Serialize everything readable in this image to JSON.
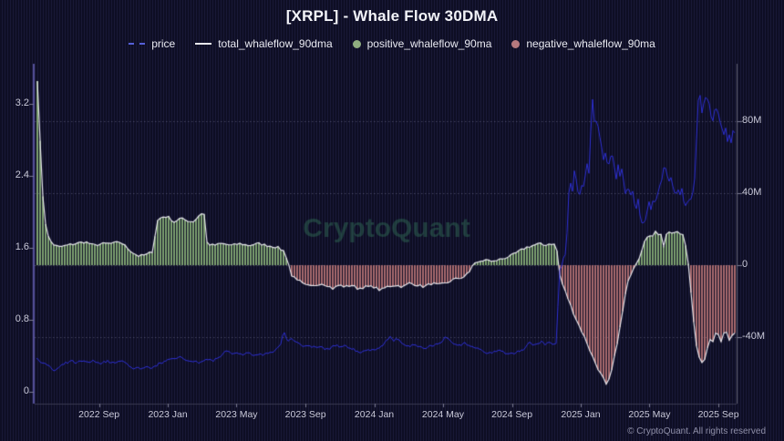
{
  "title": "[XRPL] - Whale Flow 30DMA",
  "watermark": "CryptoQuant",
  "footer": {
    "copyright": "© CryptoQuant. All rights reserved"
  },
  "colors": {
    "background": "#0e0e24",
    "pinstripe": "#181836",
    "price_line": "#2d2fd2",
    "total_line": "#e4e4ea",
    "positive_bar": "#7da070",
    "negative_bar": "#a96a6e",
    "grid": "#9696b4",
    "axis_left": "#55509a",
    "axis_right": "#606070",
    "axis_bottom": "#3a3a50",
    "watermark": "rgba(58,134,98,0.38)"
  },
  "legend": [
    {
      "label": "price",
      "swatch": "dash",
      "color": "#5560d8"
    },
    {
      "label": "total_whaleflow_90dma",
      "swatch": "line",
      "color": "#e8e8ec"
    },
    {
      "label": "positive_whaleflow_90ma",
      "swatch": "circle",
      "color": "#8fae7f"
    },
    {
      "label": "negative_whaleflow_90ma",
      "swatch": "circle",
      "color": "#b5797e"
    }
  ],
  "chart_data": {
    "type": "mixed",
    "title": "[XRPL] - Whale Flow 30DMA",
    "x_range": [
      2022.355,
      2025.755
    ],
    "price_axis": {
      "side": "left",
      "ticks": [
        {
          "label": "0",
          "v": 0
        },
        {
          "label": "0.8",
          "v": 0.8
        },
        {
          "label": "1.6",
          "v": 1.6
        },
        {
          "label": "2.4",
          "v": 2.4
        },
        {
          "label": "3.2",
          "v": 3.2
        }
      ],
      "range": [
        -0.132,
        3.646
      ]
    },
    "flow_axis": {
      "side": "right",
      "ticks": [
        {
          "label": "-40M",
          "v": -40
        },
        {
          "label": "0",
          "v": 0
        },
        {
          "label": "40M",
          "v": 40
        },
        {
          "label": "80M",
          "v": 80
        }
      ],
      "range": [
        -76.9,
        111.9
      ]
    },
    "x_ticks": [
      {
        "label": "2022 Sep",
        "t": 2022.667
      },
      {
        "label": "2023 Jan",
        "t": 2023.0
      },
      {
        "label": "2023 May",
        "t": 2023.333
      },
      {
        "label": "2023 Sep",
        "t": 2023.667
      },
      {
        "label": "2024 Jan",
        "t": 2024.0
      },
      {
        "label": "2024 May",
        "t": 2024.333
      },
      {
        "label": "2024 Sep",
        "t": 2024.667
      },
      {
        "label": "2025 Jan",
        "t": 2025.0
      },
      {
        "label": "2025 May",
        "t": 2025.333
      },
      {
        "label": "2025 Sep",
        "t": 2025.667
      }
    ],
    "series": [
      {
        "name": "price",
        "type": "line",
        "axis": "price"
      },
      {
        "name": "total_whaleflow_90dma",
        "type": "line",
        "axis": "flow"
      },
      {
        "name": "positive_whaleflow_90ma",
        "type": "bar",
        "axis": "flow",
        "sign": "positive"
      },
      {
        "name": "negative_whaleflow_90ma",
        "type": "bar",
        "axis": "flow",
        "sign": "negative"
      }
    ],
    "noise": {
      "seed": 7,
      "price_amp_early": 0.018,
      "price_amp_late": 0.06,
      "flow_amp": 0.7,
      "late_after": 2024.88
    },
    "whaleflow_points": [
      [
        2022.37,
        103
      ],
      [
        2022.385,
        58
      ],
      [
        2022.4,
        28
      ],
      [
        2022.42,
        16
      ],
      [
        2022.44,
        12
      ],
      [
        2022.47,
        10
      ],
      [
        2022.51,
        11
      ],
      [
        2022.55,
        12
      ],
      [
        2022.6,
        13
      ],
      [
        2022.64,
        11
      ],
      [
        2022.69,
        12
      ],
      [
        2022.73,
        12
      ],
      [
        2022.77,
        13
      ],
      [
        2022.8,
        10
      ],
      [
        2022.83,
        7
      ],
      [
        2022.86,
        5
      ],
      [
        2022.9,
        6
      ],
      [
        2022.93,
        8
      ],
      [
        2022.945,
        24
      ],
      [
        2022.96,
        26
      ],
      [
        2022.98,
        27
      ],
      [
        2023.0,
        27
      ],
      [
        2023.03,
        24
      ],
      [
        2023.06,
        26
      ],
      [
        2023.09,
        25
      ],
      [
        2023.12,
        24
      ],
      [
        2023.14,
        26
      ],
      [
        2023.16,
        29
      ],
      [
        2023.18,
        28
      ],
      [
        2023.19,
        12
      ],
      [
        2023.22,
        11
      ],
      [
        2023.26,
        12
      ],
      [
        2023.31,
        11
      ],
      [
        2023.35,
        12
      ],
      [
        2023.39,
        11
      ],
      [
        2023.44,
        12
      ],
      [
        2023.48,
        11
      ],
      [
        2023.53,
        10
      ],
      [
        2023.56,
        8
      ],
      [
        2023.58,
        3
      ],
      [
        2023.6,
        -6
      ],
      [
        2023.62,
        -7
      ],
      [
        2023.66,
        -11
      ],
      [
        2023.7,
        -12
      ],
      [
        2023.74,
        -10
      ],
      [
        2023.77,
        -11
      ],
      [
        2023.8,
        -13
      ],
      [
        2023.83,
        -11
      ],
      [
        2023.86,
        -12
      ],
      [
        2023.89,
        -11
      ],
      [
        2023.92,
        -13
      ],
      [
        2023.96,
        -12
      ],
      [
        2024.0,
        -12
      ],
      [
        2024.03,
        -14
      ],
      [
        2024.06,
        -12
      ],
      [
        2024.1,
        -11
      ],
      [
        2024.14,
        -12
      ],
      [
        2024.17,
        -10
      ],
      [
        2024.21,
        -11
      ],
      [
        2024.24,
        -12
      ],
      [
        2024.28,
        -10
      ],
      [
        2024.31,
        -11
      ],
      [
        2024.35,
        -10
      ],
      [
        2024.38,
        -8
      ],
      [
        2024.42,
        -7
      ],
      [
        2024.44,
        -6
      ],
      [
        2024.46,
        -4
      ],
      [
        2024.48,
        1
      ],
      [
        2024.51,
        2
      ],
      [
        2024.54,
        3
      ],
      [
        2024.57,
        2
      ],
      [
        2024.6,
        3
      ],
      [
        2024.63,
        4
      ],
      [
        2024.66,
        5
      ],
      [
        2024.69,
        7
      ],
      [
        2024.72,
        9
      ],
      [
        2024.74,
        10
      ],
      [
        2024.77,
        11
      ],
      [
        2024.8,
        12
      ],
      [
        2024.82,
        11
      ],
      [
        2024.85,
        12
      ],
      [
        2024.87,
        12
      ],
      [
        2024.885,
        8
      ],
      [
        2024.895,
        -4
      ],
      [
        2024.91,
        -10
      ],
      [
        2024.93,
        -16
      ],
      [
        2024.95,
        -22
      ],
      [
        2024.97,
        -28
      ],
      [
        2024.99,
        -33
      ],
      [
        2025.01,
        -38
      ],
      [
        2025.03,
        -43
      ],
      [
        2025.05,
        -49
      ],
      [
        2025.07,
        -54
      ],
      [
        2025.09,
        -59
      ],
      [
        2025.11,
        -63
      ],
      [
        2025.125,
        -67
      ],
      [
        2025.14,
        -63
      ],
      [
        2025.155,
        -56
      ],
      [
        2025.17,
        -47
      ],
      [
        2025.185,
        -38
      ],
      [
        2025.2,
        -28
      ],
      [
        2025.215,
        -17
      ],
      [
        2025.23,
        -9
      ],
      [
        2025.245,
        -4
      ],
      [
        2025.26,
        -1
      ],
      [
        2025.275,
        2
      ],
      [
        2025.29,
        6
      ],
      [
        2025.305,
        13
      ],
      [
        2025.32,
        16
      ],
      [
        2025.335,
        17
      ],
      [
        2025.35,
        16
      ],
      [
        2025.36,
        18
      ],
      [
        2025.37,
        19
      ],
      [
        2025.38,
        16
      ],
      [
        2025.39,
        18
      ],
      [
        2025.4,
        10
      ],
      [
        2025.41,
        16
      ],
      [
        2025.42,
        18
      ],
      [
        2025.43,
        19
      ],
      [
        2025.44,
        18
      ],
      [
        2025.45,
        17
      ],
      [
        2025.46,
        18
      ],
      [
        2025.47,
        19
      ],
      [
        2025.48,
        17
      ],
      [
        2025.49,
        18
      ],
      [
        2025.5,
        15
      ],
      [
        2025.51,
        10
      ],
      [
        2025.52,
        2
      ],
      [
        2025.53,
        -10
      ],
      [
        2025.54,
        -22
      ],
      [
        2025.55,
        -34
      ],
      [
        2025.56,
        -44
      ],
      [
        2025.57,
        -50
      ],
      [
        2025.58,
        -54
      ],
      [
        2025.59,
        -55
      ],
      [
        2025.6,
        -52
      ],
      [
        2025.61,
        -48
      ],
      [
        2025.62,
        -44
      ],
      [
        2025.63,
        -40
      ],
      [
        2025.64,
        -42
      ],
      [
        2025.65,
        -38
      ],
      [
        2025.66,
        -36
      ],
      [
        2025.67,
        -40
      ],
      [
        2025.68,
        -42
      ],
      [
        2025.69,
        -38
      ],
      [
        2025.7,
        -35
      ],
      [
        2025.71,
        -38
      ],
      [
        2025.72,
        -42
      ],
      [
        2025.73,
        -40
      ],
      [
        2025.74,
        -37
      ],
      [
        2025.75,
        -38
      ]
    ],
    "price_points": [
      [
        2022.37,
        0.37
      ],
      [
        2022.39,
        0.33
      ],
      [
        2022.41,
        0.3
      ],
      [
        2022.43,
        0.27
      ],
      [
        2022.45,
        0.23
      ],
      [
        2022.47,
        0.26
      ],
      [
        2022.5,
        0.31
      ],
      [
        2022.53,
        0.34
      ],
      [
        2022.56,
        0.32
      ],
      [
        2022.58,
        0.34
      ],
      [
        2022.61,
        0.33
      ],
      [
        2022.64,
        0.34
      ],
      [
        2022.66,
        0.32
      ],
      [
        2022.69,
        0.33
      ],
      [
        2022.71,
        0.34
      ],
      [
        2022.74,
        0.32
      ],
      [
        2022.76,
        0.33
      ],
      [
        2022.79,
        0.34
      ],
      [
        2022.81,
        0.3
      ],
      [
        2022.83,
        0.25
      ],
      [
        2022.85,
        0.27
      ],
      [
        2022.87,
        0.25
      ],
      [
        2022.9,
        0.27
      ],
      [
        2022.92,
        0.26
      ],
      [
        2022.94,
        0.29
      ],
      [
        2022.96,
        0.31
      ],
      [
        2022.99,
        0.35
      ],
      [
        2023.01,
        0.38
      ],
      [
        2023.03,
        0.36
      ],
      [
        2023.06,
        0.38
      ],
      [
        2023.08,
        0.36
      ],
      [
        2023.1,
        0.34
      ],
      [
        2023.13,
        0.35
      ],
      [
        2023.15,
        0.33
      ],
      [
        2023.17,
        0.34
      ],
      [
        2023.19,
        0.36
      ],
      [
        2023.22,
        0.35
      ],
      [
        2023.24,
        0.37
      ],
      [
        2023.26,
        0.4
      ],
      [
        2023.28,
        0.45
      ],
      [
        2023.31,
        0.42
      ],
      [
        2023.33,
        0.43
      ],
      [
        2023.35,
        0.41
      ],
      [
        2023.37,
        0.43
      ],
      [
        2023.4,
        0.42
      ],
      [
        2023.42,
        0.4
      ],
      [
        2023.44,
        0.42
      ],
      [
        2023.46,
        0.41
      ],
      [
        2023.49,
        0.43
      ],
      [
        2023.51,
        0.45
      ],
      [
        2023.53,
        0.48
      ],
      [
        2023.55,
        0.55
      ],
      [
        2023.56,
        0.7
      ],
      [
        2023.57,
        0.62
      ],
      [
        2023.58,
        0.56
      ],
      [
        2023.6,
        0.6
      ],
      [
        2023.62,
        0.56
      ],
      [
        2023.64,
        0.52
      ],
      [
        2023.66,
        0.5
      ],
      [
        2023.69,
        0.51
      ],
      [
        2023.71,
        0.49
      ],
      [
        2023.73,
        0.5
      ],
      [
        2023.76,
        0.48
      ],
      [
        2023.78,
        0.47
      ],
      [
        2023.8,
        0.5
      ],
      [
        2023.82,
        0.52
      ],
      [
        2023.84,
        0.49
      ],
      [
        2023.86,
        0.51
      ],
      [
        2023.89,
        0.48
      ],
      [
        2023.91,
        0.46
      ],
      [
        2023.93,
        0.44
      ],
      [
        2023.96,
        0.46
      ],
      [
        2023.98,
        0.45
      ],
      [
        2024.0,
        0.47
      ],
      [
        2024.02,
        0.49
      ],
      [
        2024.04,
        0.52
      ],
      [
        2024.06,
        0.57
      ],
      [
        2024.08,
        0.61
      ],
      [
        2024.09,
        0.57
      ],
      [
        2024.11,
        0.59
      ],
      [
        2024.13,
        0.55
      ],
      [
        2024.15,
        0.52
      ],
      [
        2024.17,
        0.5
      ],
      [
        2024.2,
        0.52
      ],
      [
        2024.22,
        0.5
      ],
      [
        2024.24,
        0.48
      ],
      [
        2024.26,
        0.5
      ],
      [
        2024.29,
        0.52
      ],
      [
        2024.31,
        0.54
      ],
      [
        2024.33,
        0.56
      ],
      [
        2024.34,
        0.6
      ],
      [
        2024.36,
        0.58
      ],
      [
        2024.38,
        0.55
      ],
      [
        2024.4,
        0.53
      ],
      [
        2024.42,
        0.52
      ],
      [
        2024.44,
        0.54
      ],
      [
        2024.47,
        0.5
      ],
      [
        2024.49,
        0.48
      ],
      [
        2024.51,
        0.47
      ],
      [
        2024.53,
        0.44
      ],
      [
        2024.55,
        0.42
      ],
      [
        2024.57,
        0.44
      ],
      [
        2024.6,
        0.46
      ],
      [
        2024.62,
        0.44
      ],
      [
        2024.64,
        0.42
      ],
      [
        2024.66,
        0.44
      ],
      [
        2024.68,
        0.43
      ],
      [
        2024.7,
        0.45
      ],
      [
        2024.72,
        0.47
      ],
      [
        2024.74,
        0.52
      ],
      [
        2024.75,
        0.55
      ],
      [
        2024.77,
        0.52
      ],
      [
        2024.79,
        0.54
      ],
      [
        2024.81,
        0.56
      ],
      [
        2024.83,
        0.53
      ],
      [
        2024.85,
        0.55
      ],
      [
        2024.87,
        0.53
      ],
      [
        2024.88,
        0.56
      ],
      [
        2024.886,
        0.75
      ],
      [
        2024.892,
        1.12
      ],
      [
        2024.9,
        1.4
      ],
      [
        2024.91,
        1.38
      ],
      [
        2024.92,
        1.55
      ],
      [
        2024.93,
        1.45
      ],
      [
        2024.94,
        2.2
      ],
      [
        2024.95,
        2.35
      ],
      [
        2024.96,
        2.25
      ],
      [
        2024.97,
        2.45
      ],
      [
        2024.98,
        2.3
      ],
      [
        2024.99,
        2.15
      ],
      [
        2025.0,
        2.3
      ],
      [
        2025.01,
        2.2
      ],
      [
        2025.02,
        2.35
      ],
      [
        2025.03,
        2.55
      ],
      [
        2025.04,
        2.45
      ],
      [
        2025.046,
        2.8
      ],
      [
        2025.052,
        3.08
      ],
      [
        2025.058,
        3.28
      ],
      [
        2025.065,
        3.05
      ],
      [
        2025.07,
        2.95
      ],
      [
        2025.08,
        3.1
      ],
      [
        2025.09,
        2.85
      ],
      [
        2025.1,
        2.7
      ],
      [
        2025.11,
        2.55
      ],
      [
        2025.12,
        2.65
      ],
      [
        2025.13,
        2.5
      ],
      [
        2025.14,
        2.6
      ],
      [
        2025.15,
        2.72
      ],
      [
        2025.16,
        2.55
      ],
      [
        2025.17,
        2.4
      ],
      [
        2025.18,
        2.5
      ],
      [
        2025.19,
        2.35
      ],
      [
        2025.2,
        2.45
      ],
      [
        2025.21,
        2.3
      ],
      [
        2025.22,
        2.2
      ],
      [
        2025.23,
        2.3
      ],
      [
        2025.24,
        2.15
      ],
      [
        2025.25,
        2.25
      ],
      [
        2025.26,
        2.1
      ],
      [
        2025.27,
        2.05
      ],
      [
        2025.28,
        2.15
      ],
      [
        2025.29,
        1.95
      ],
      [
        2025.3,
        1.88
      ],
      [
        2025.31,
        1.84
      ],
      [
        2025.32,
        2.0
      ],
      [
        2025.33,
        2.1
      ],
      [
        2025.34,
        2.05
      ],
      [
        2025.35,
        2.15
      ],
      [
        2025.36,
        2.1
      ],
      [
        2025.37,
        2.2
      ],
      [
        2025.38,
        2.25
      ],
      [
        2025.39,
        2.35
      ],
      [
        2025.4,
        2.45
      ],
      [
        2025.41,
        2.5
      ],
      [
        2025.42,
        2.4
      ],
      [
        2025.43,
        2.3
      ],
      [
        2025.44,
        2.35
      ],
      [
        2025.45,
        2.25
      ],
      [
        2025.46,
        2.2
      ],
      [
        2025.47,
        2.28
      ],
      [
        2025.48,
        2.18
      ],
      [
        2025.49,
        2.25
      ],
      [
        2025.5,
        2.15
      ],
      [
        2025.51,
        2.1
      ],
      [
        2025.52,
        2.05
      ],
      [
        2025.53,
        2.15
      ],
      [
        2025.54,
        2.18
      ],
      [
        2025.55,
        2.3
      ],
      [
        2025.556,
        2.55
      ],
      [
        2025.562,
        2.85
      ],
      [
        2025.568,
        3.15
      ],
      [
        2025.574,
        3.5
      ],
      [
        2025.58,
        3.22
      ],
      [
        2025.586,
        3.05
      ],
      [
        2025.6,
        3.3
      ],
      [
        2025.61,
        3.22
      ],
      [
        2025.62,
        3.32
      ],
      [
        2025.63,
        3.05
      ],
      [
        2025.64,
        2.98
      ],
      [
        2025.65,
        3.1
      ],
      [
        2025.66,
        3.15
      ],
      [
        2025.67,
        3.02
      ],
      [
        2025.68,
        2.95
      ],
      [
        2025.69,
        2.85
      ],
      [
        2025.7,
        2.92
      ],
      [
        2025.71,
        2.8
      ],
      [
        2025.72,
        2.86
      ],
      [
        2025.73,
        2.78
      ],
      [
        2025.74,
        2.9
      ],
      [
        2025.75,
        2.88
      ]
    ]
  }
}
